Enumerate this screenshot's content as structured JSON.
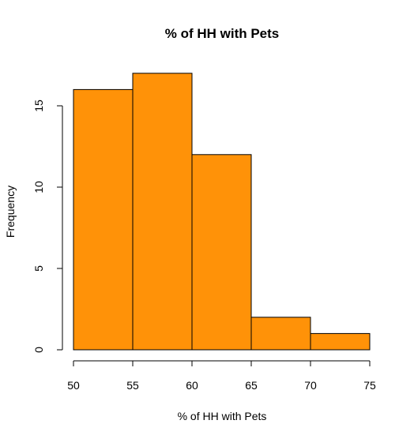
{
  "chart_data": {
    "type": "bar",
    "title": "% of HH with Pets",
    "xlabel": "% of HH with Pets",
    "ylabel": "Frequency",
    "bins": [
      {
        "start": 50,
        "end": 55,
        "count": 16
      },
      {
        "start": 55,
        "end": 60,
        "count": 17
      },
      {
        "start": 60,
        "end": 65,
        "count": 12
      },
      {
        "start": 65,
        "end": 70,
        "count": 2
      },
      {
        "start": 70,
        "end": 75,
        "count": 1
      }
    ],
    "xlim": [
      50,
      75
    ],
    "ylim": [
      0,
      17
    ],
    "x_ticks": [
      "50",
      "55",
      "60",
      "65",
      "70",
      "75"
    ],
    "y_ticks": [
      "0",
      "5",
      "10",
      "15"
    ],
    "grid": false,
    "bar_color": "#FF9208",
    "edge_color": "#000000"
  }
}
